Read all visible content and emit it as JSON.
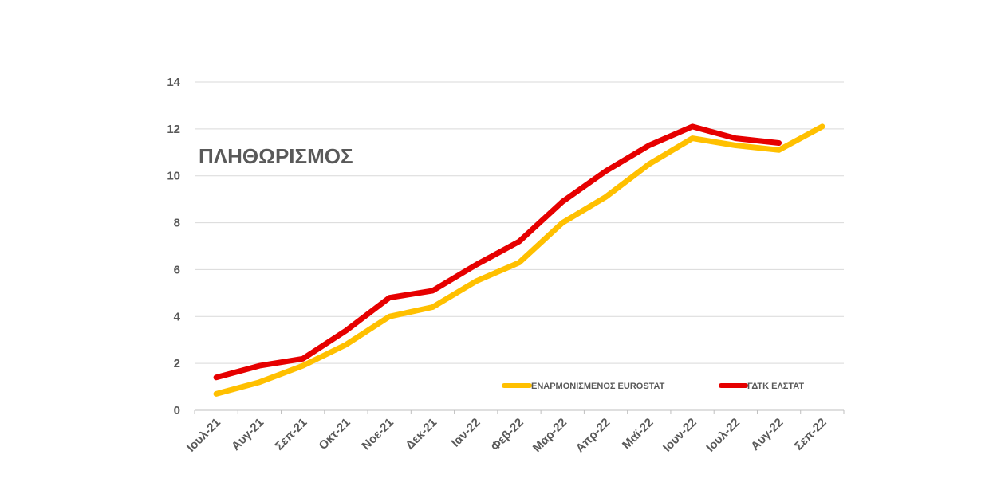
{
  "chart_data": {
    "type": "line",
    "title": "ΠΛΗΘΩΡΙΣΜΟΣ",
    "xlabel": "",
    "ylabel": "",
    "ylim": [
      0,
      14
    ],
    "yticks": [
      0,
      2,
      4,
      6,
      8,
      10,
      12,
      14
    ],
    "grid": true,
    "legend_position": "bottom-right",
    "categories": [
      "Ιουλ-21",
      "Αυγ-21",
      "Σεπ-21",
      "Οκτ-21",
      "Νοε-21",
      "Δεκ-21",
      "Ιαν-22",
      "Φεβ-22",
      "Μαρ-22",
      "Απρ-22",
      "Μαϊ-22",
      "Ιουν-22",
      "Ιουλ-22",
      "Αυγ-22",
      "Σεπ-22"
    ],
    "series": [
      {
        "name": "ΕΝΑΡΜΟΝΙΣΜΕΝΟΣ EUROSTAT",
        "color": "#FFC000",
        "values": [
          0.7,
          1.2,
          1.9,
          2.8,
          4.0,
          4.4,
          5.5,
          6.3,
          8.0,
          9.1,
          10.5,
          11.6,
          11.3,
          11.1,
          12.1
        ]
      },
      {
        "name": "ΓΔΤΚ ΕΛΣΤΑΤ",
        "color": "#E60000",
        "values": [
          1.4,
          1.9,
          2.2,
          3.4,
          4.8,
          5.1,
          6.2,
          7.2,
          8.9,
          10.2,
          11.3,
          12.1,
          11.6,
          11.4,
          null
        ]
      }
    ]
  }
}
